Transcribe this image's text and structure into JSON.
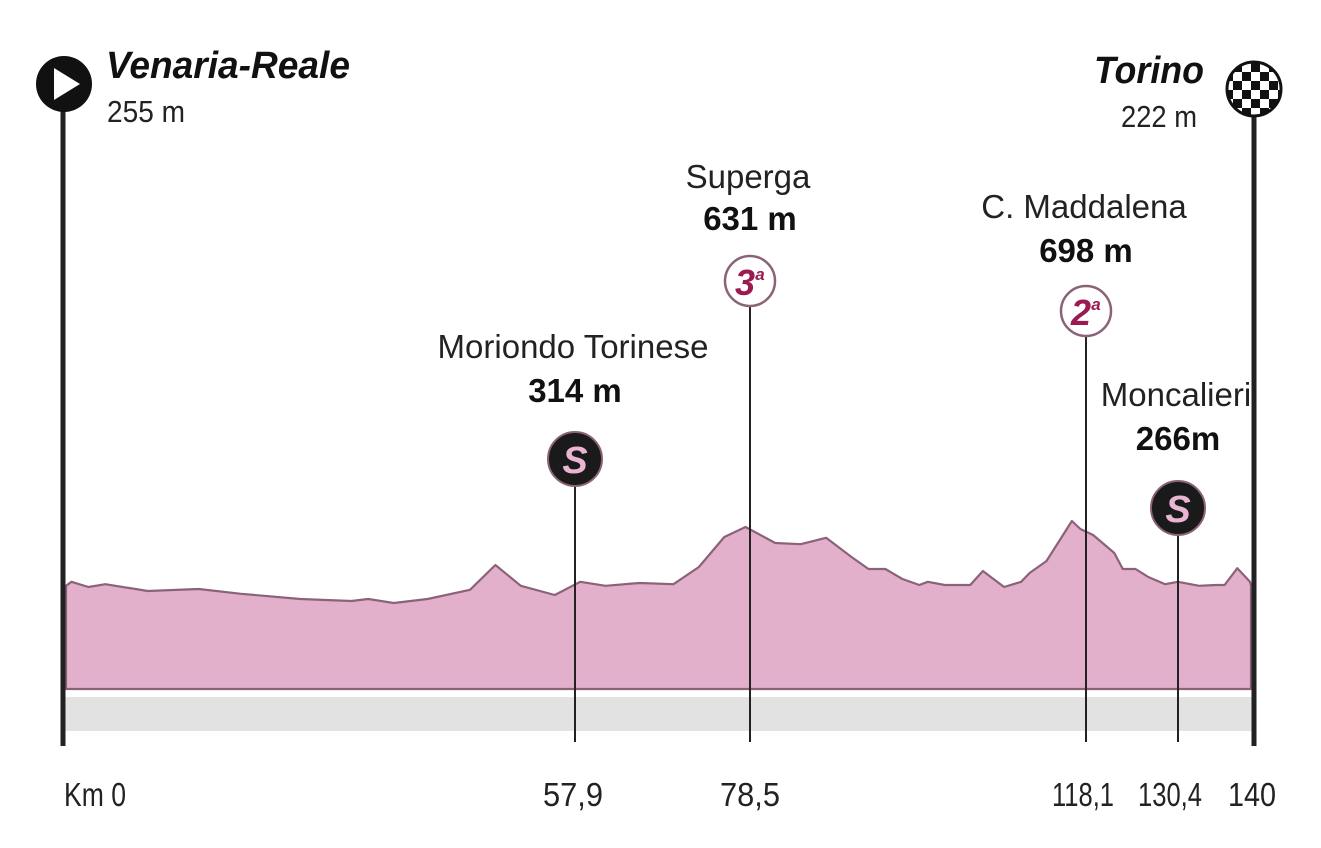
{
  "chart_data": {
    "type": "area",
    "start": {
      "name": "Venaria-Reale",
      "altitude": "255 m"
    },
    "finish": {
      "name": "Torino",
      "altitude": "222 m"
    },
    "x_ticks": [
      "Km 0",
      "57,9",
      "78,5",
      "118,1",
      "130,4",
      "140"
    ],
    "xlim": [
      0,
      140
    ],
    "ylim": [
      0,
      1000
    ],
    "profile": [
      [
        0,
        258
      ],
      [
        1,
        268
      ],
      [
        3,
        255
      ],
      [
        5,
        262
      ],
      [
        10,
        245
      ],
      [
        16,
        250
      ],
      [
        21,
        238
      ],
      [
        28,
        225
      ],
      [
        34,
        220
      ],
      [
        36,
        225
      ],
      [
        39,
        215
      ],
      [
        43,
        225
      ],
      [
        48,
        248
      ],
      [
        51,
        310
      ],
      [
        54,
        258
      ],
      [
        58,
        235
      ],
      [
        61,
        268
      ],
      [
        64,
        258
      ],
      [
        68,
        265
      ],
      [
        72,
        262
      ],
      [
        75,
        305
      ],
      [
        78,
        380
      ],
      [
        80.5,
        405
      ],
      [
        84,
        365
      ],
      [
        87,
        362
      ],
      [
        90,
        378
      ],
      [
        93,
        330
      ],
      [
        95,
        300
      ],
      [
        97,
        300
      ],
      [
        99,
        275
      ],
      [
        101,
        260
      ],
      [
        102,
        268
      ],
      [
        104,
        260
      ],
      [
        107,
        260
      ],
      [
        108.5,
        295
      ],
      [
        111,
        255
      ],
      [
        113,
        268
      ],
      [
        114,
        290
      ],
      [
        116,
        320
      ],
      [
        119,
        420
      ],
      [
        120,
        400
      ],
      [
        121.5,
        385
      ],
      [
        124,
        340
      ],
      [
        125,
        300
      ],
      [
        126.5,
        300
      ],
      [
        128,
        280
      ],
      [
        130,
        262
      ],
      [
        131.5,
        268
      ],
      [
        133,
        262
      ],
      [
        134,
        258
      ],
      [
        136,
        260
      ],
      [
        137,
        260
      ],
      [
        138.5,
        302
      ],
      [
        140,
        268
      ],
      [
        141,
        258
      ]
    ],
    "climbs": [
      {
        "name": "Moriondo Torinese",
        "altitude": "314 m",
        "km": 57.9,
        "badge": "S",
        "badge_type": "sprint"
      },
      {
        "name": "Superga",
        "altitude": "631 m",
        "km": 78.5,
        "badge": "3",
        "badge_sup": "a",
        "badge_type": "kom"
      },
      {
        "name": "C. Maddalena",
        "altitude": "698 m",
        "km": 118.1,
        "badge": "2",
        "badge_sup": "a",
        "badge_type": "kom"
      },
      {
        "name": "Moncalieri",
        "altitude": "266m",
        "km": 130.4,
        "badge": "S",
        "badge_type": "sprint"
      }
    ],
    "colors": {
      "profile_fill": "#e3b0cc",
      "profile_stroke": "#8a6378",
      "road": "#e2e2e2",
      "kom_badge": "#9c1a52",
      "sprint_badge_bg": "#1a1a1a",
      "sprint_badge_text": "#e9b5d3"
    }
  }
}
